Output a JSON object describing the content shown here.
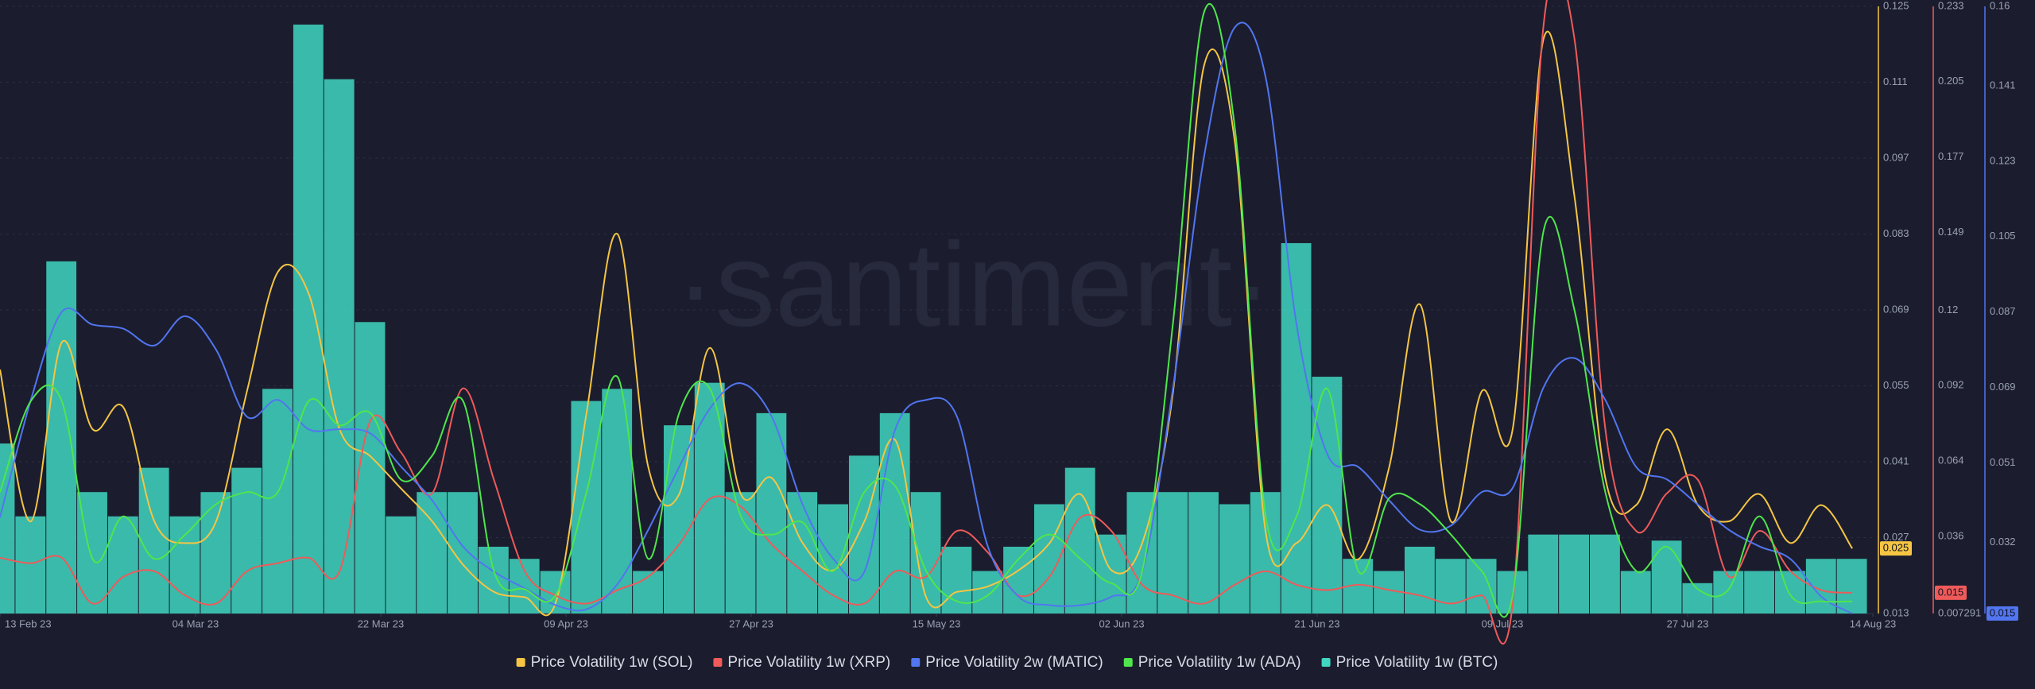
{
  "chart_data": {
    "type": "line",
    "watermark": "·santiment·",
    "grid": true,
    "x": [
      "2023-02-13",
      "2023-02-16",
      "2023-02-19",
      "2023-02-22",
      "2023-02-25",
      "2023-02-28",
      "2023-03-03",
      "2023-03-06",
      "2023-03-09",
      "2023-03-12",
      "2023-03-15",
      "2023-03-18",
      "2023-03-21",
      "2023-03-24",
      "2023-03-27",
      "2023-03-30",
      "2023-04-02",
      "2023-04-05",
      "2023-04-08",
      "2023-04-11",
      "2023-04-14",
      "2023-04-17",
      "2023-04-20",
      "2023-04-23",
      "2023-04-26",
      "2023-04-29",
      "2023-05-02",
      "2023-05-05",
      "2023-05-08",
      "2023-05-11",
      "2023-05-14",
      "2023-05-17",
      "2023-05-20",
      "2023-05-23",
      "2023-05-26",
      "2023-05-29",
      "2023-06-01",
      "2023-06-04",
      "2023-06-07",
      "2023-06-10",
      "2023-06-13",
      "2023-06-16",
      "2023-06-19",
      "2023-06-22",
      "2023-06-25",
      "2023-06-28",
      "2023-07-01",
      "2023-07-04",
      "2023-07-07",
      "2023-07-10",
      "2023-07-13",
      "2023-07-16",
      "2023-07-19",
      "2023-07-22",
      "2023-07-25",
      "2023-07-28",
      "2023-07-31",
      "2023-08-03",
      "2023-08-06",
      "2023-08-09",
      "2023-08-12"
    ],
    "xlim": [
      "2023-02-13",
      "2023-08-14"
    ],
    "xticks": [
      {
        "value": "2023-02-13",
        "label": "13 Feb 23"
      },
      {
        "value": "2023-03-04",
        "label": "04 Mar 23"
      },
      {
        "value": "2023-03-22",
        "label": "22 Mar 23"
      },
      {
        "value": "2023-04-09",
        "label": "09 Apr 23"
      },
      {
        "value": "2023-04-27",
        "label": "27 Apr 23"
      },
      {
        "value": "2023-05-15",
        "label": "15 May 23"
      },
      {
        "value": "2023-06-02",
        "label": "02 Jun 23"
      },
      {
        "value": "2023-06-21",
        "label": "21 Jun 23"
      },
      {
        "value": "2023-07-09",
        "label": "09 Jul 23"
      },
      {
        "value": "2023-07-27",
        "label": "27 Jul 23"
      },
      {
        "value": "2023-08-14",
        "label": "14 Aug 23"
      }
    ],
    "series": [
      {
        "name": "Price Volatility 1w (SOL)",
        "color": "#f5c543",
        "mark": "line",
        "ylim": [
          0.013,
          0.125
        ],
        "yticks": [
          0.125,
          0.111,
          0.097,
          0.083,
          0.069,
          0.055,
          0.041,
          0.027,
          0.013
        ],
        "values": [
          0.058,
          0.03,
          0.063,
          0.047,
          0.051,
          0.03,
          0.026,
          0.03,
          0.054,
          0.076,
          0.072,
          0.047,
          0.042,
          0.036,
          0.03,
          0.022,
          0.017,
          0.016,
          0.015,
          0.05,
          0.083,
          0.04,
          0.035,
          0.062,
          0.035,
          0.038,
          0.026,
          0.021,
          0.03,
          0.045,
          0.016,
          0.017,
          0.018,
          0.021,
          0.026,
          0.035,
          0.021,
          0.026,
          0.054,
          0.114,
          0.1,
          0.028,
          0.026,
          0.033,
          0.023,
          0.04,
          0.07,
          0.03,
          0.054,
          0.047,
          0.119,
          0.09,
          0.038,
          0.033,
          0.047,
          0.033,
          0.03,
          0.035,
          0.026,
          0.033,
          0.025
        ]
      },
      {
        "name": "Price Volatility 1w (XRP)",
        "color": "#ef5a5a",
        "mark": "line",
        "ylim": [
          0.007291,
          0.233
        ],
        "yticks": [
          0.233,
          0.205,
          0.177,
          0.149,
          0.12,
          0.092,
          0.064,
          0.036,
          0.007291
        ],
        "values": [
          0.028,
          0.026,
          0.028,
          0.011,
          0.021,
          0.023,
          0.014,
          0.011,
          0.023,
          0.026,
          0.028,
          0.023,
          0.079,
          0.067,
          0.052,
          0.091,
          0.057,
          0.023,
          0.014,
          0.011,
          0.016,
          0.021,
          0.033,
          0.05,
          0.047,
          0.033,
          0.023,
          0.014,
          0.011,
          0.023,
          0.021,
          0.038,
          0.03,
          0.014,
          0.021,
          0.043,
          0.038,
          0.018,
          0.014,
          0.011,
          0.018,
          0.023,
          0.018,
          0.016,
          0.018,
          0.016,
          0.014,
          0.011,
          0.014,
          0.011,
          0.226,
          0.221,
          0.076,
          0.038,
          0.052,
          0.057,
          0.021,
          0.038,
          0.023,
          0.016,
          0.015
        ]
      },
      {
        "name": "Price Volatility 2w (MATIC)",
        "color": "#5275f0",
        "mark": "line",
        "ylim": [
          0.015,
          0.16
        ],
        "yticks": [
          0.16,
          0.141,
          0.123,
          0.105,
          0.087,
          0.069,
          0.051,
          0.032
        ],
        "values": [
          0.038,
          0.066,
          0.087,
          0.084,
          0.083,
          0.079,
          0.086,
          0.078,
          0.062,
          0.066,
          0.059,
          0.059,
          0.058,
          0.05,
          0.042,
          0.031,
          0.025,
          0.021,
          0.017,
          0.016,
          0.022,
          0.035,
          0.05,
          0.064,
          0.07,
          0.062,
          0.041,
          0.028,
          0.025,
          0.059,
          0.066,
          0.062,
          0.031,
          0.019,
          0.017,
          0.017,
          0.019,
          0.025,
          0.069,
          0.124,
          0.155,
          0.143,
          0.084,
          0.053,
          0.05,
          0.042,
          0.035,
          0.036,
          0.044,
          0.045,
          0.069,
          0.076,
          0.066,
          0.05,
          0.047,
          0.041,
          0.035,
          0.031,
          0.028,
          0.019,
          0.015
        ]
      },
      {
        "name": "Price Volatility 1w (ADA)",
        "color": "#4fe64c",
        "mark": "line",
        "ylim": [
          0,
          0.1
        ],
        "values": [
          0.02,
          0.035,
          0.035,
          0.009,
          0.016,
          0.009,
          0.013,
          0.018,
          0.02,
          0.02,
          0.035,
          0.031,
          0.033,
          0.022,
          0.026,
          0.035,
          0.007,
          0.004,
          0.003,
          0.02,
          0.039,
          0.009,
          0.033,
          0.037,
          0.016,
          0.013,
          0.015,
          0.007,
          0.02,
          0.021,
          0.007,
          0.002,
          0.003,
          0.009,
          0.013,
          0.009,
          0.005,
          0.007,
          0.048,
          0.099,
          0.08,
          0.016,
          0.016,
          0.037,
          0.007,
          0.019,
          0.018,
          0.013,
          0.007,
          0.003,
          0.063,
          0.05,
          0.02,
          0.007,
          0.011,
          0.004,
          0.004,
          0.016,
          0.003,
          0.002,
          0.002
        ]
      },
      {
        "name": "Price Volatility 1w (BTC)",
        "color": "#40d6c0",
        "mark": "bar",
        "ylim": [
          0,
          0.1
        ],
        "values": [
          0.028,
          0.016,
          0.058,
          0.02,
          0.016,
          0.024,
          0.016,
          0.02,
          0.024,
          0.037,
          0.097,
          0.088,
          0.048,
          0.016,
          0.02,
          0.02,
          0.011,
          0.009,
          0.007,
          0.035,
          0.037,
          0.007,
          0.031,
          0.038,
          0.02,
          0.033,
          0.02,
          0.018,
          0.026,
          0.033,
          0.02,
          0.011,
          0.007,
          0.011,
          0.018,
          0.024,
          0.013,
          0.02,
          0.02,
          0.02,
          0.018,
          0.02,
          0.061,
          0.039,
          0.009,
          0.007,
          0.011,
          0.009,
          0.009,
          0.007,
          0.013,
          0.013,
          0.013,
          0.007,
          0.012,
          0.005,
          0.007,
          0.007,
          0.007,
          0.009,
          0.009
        ]
      }
    ]
  }
}
